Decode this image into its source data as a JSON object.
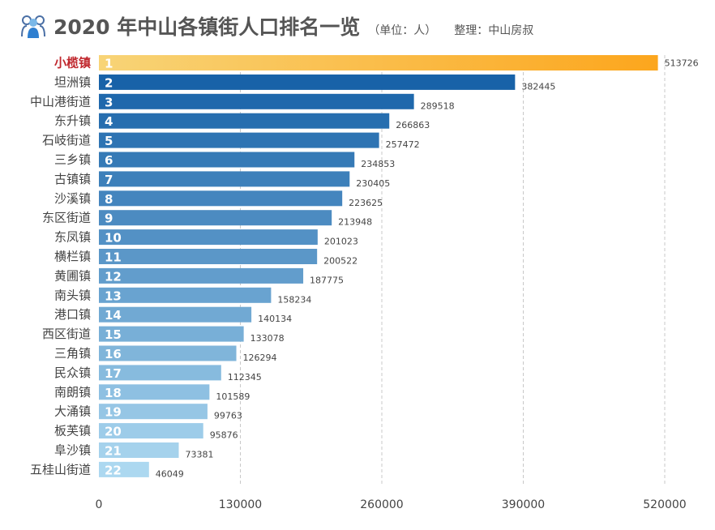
{
  "header": {
    "title": "2020 年中山各镇街人口排名一览",
    "unit": "（单位：人）",
    "credit": "整理：中山房叔"
  },
  "colors": {
    "highlight_start": "#f8d477",
    "highlight_end": "#fca61d",
    "highlight_label": "#c0272d",
    "bar_dark": "#1862a8",
    "bar_light": "#acd8f0",
    "text": "#444444",
    "grid": "#c8c8c8"
  },
  "chart_data": {
    "type": "bar",
    "orientation": "horizontal",
    "categories": [
      "小榄镇",
      "坦洲镇",
      "中山港街道",
      "东升镇",
      "石岐街道",
      "三乡镇",
      "古镇镇",
      "沙溪镇",
      "东区街道",
      "东凤镇",
      "横栏镇",
      "黄圃镇",
      "南头镇",
      "港口镇",
      "西区街道",
      "三角镇",
      "民众镇",
      "南朗镇",
      "大涌镇",
      "板芙镇",
      "阜沙镇",
      "五桂山街道"
    ],
    "ranks": [
      "1",
      "2",
      "3",
      "4",
      "5",
      "6",
      "7",
      "8",
      "9",
      "10",
      "11",
      "12",
      "13",
      "14",
      "15",
      "16",
      "17",
      "18",
      "19",
      "20",
      "21",
      "22"
    ],
    "values": [
      513726,
      382445,
      289518,
      266863,
      257472,
      234853,
      230405,
      223625,
      213948,
      201023,
      200522,
      187775,
      158234,
      140134,
      133078,
      126294,
      112345,
      101589,
      99763,
      95876,
      73381,
      46049
    ],
    "xlim": [
      0,
      520000
    ],
    "xticks": [
      "0",
      "130000",
      "260000",
      "390000",
      "520000"
    ],
    "grid": "vertical dashed",
    "legend": "none"
  }
}
